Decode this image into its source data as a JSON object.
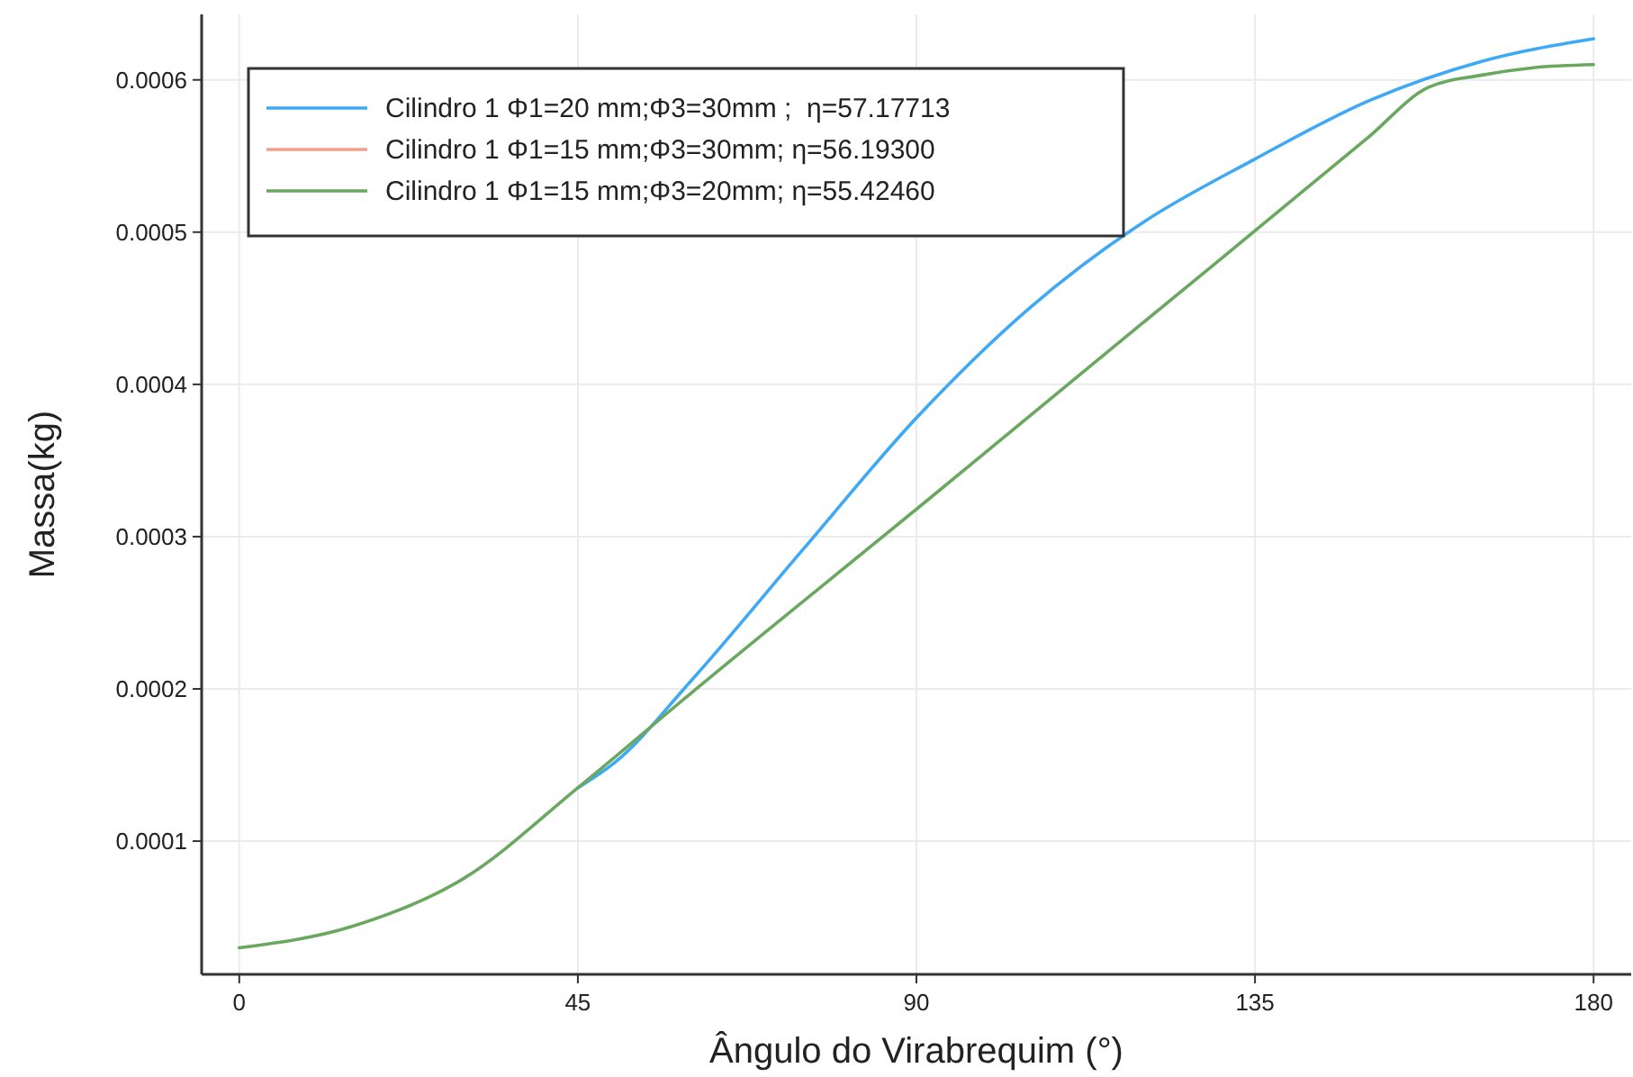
{
  "chart_data": {
    "type": "line",
    "xlabel": "Ângulo do Virabrequim (°)",
    "ylabel": "Massa(kg)",
    "xlim": [
      -5,
      185
    ],
    "ylim": [
      1.25e-05,
      0.000643
    ],
    "xticks": [
      0,
      45,
      90,
      135,
      180
    ],
    "yticks": [
      0.0001,
      0.0002,
      0.0003,
      0.0004,
      0.0005,
      0.0006
    ],
    "grid": true,
    "legend": "top left",
    "marker": "none",
    "line_style": "solid",
    "series": [
      {
        "name": "Cilindro 1 Φ1=20 mm;Φ3=30mm ;  η=57.17713",
        "color": "#3fa9f5",
        "x": [
          45,
          50,
          60,
          75,
          90,
          105,
          120,
          135,
          150,
          165,
          180
        ],
        "values": [
          0.000135,
          0.000152,
          0.000205,
          0.000292,
          0.000378,
          0.00045,
          0.000506,
          0.000548,
          0.000586,
          0.000612,
          0.000627
        ]
      },
      {
        "name": "Cilindro 1 Φ1=15 mm;Φ3=30mm; η=56.19300",
        "color": "#f0a08a",
        "type": "line"
      },
      {
        "name": "Cilindro 1 Φ1=15 mm;Φ3=20mm; η=55.42460",
        "color": "#6aa860",
        "x": [
          0,
          15,
          30,
          45,
          60,
          90,
          120,
          150,
          158,
          165,
          172,
          180
        ],
        "values": [
          3e-05,
          4.4e-05,
          7.6e-05,
          0.000135,
          0.000197,
          0.000318,
          0.00044,
          0.000562,
          0.000595,
          0.000603,
          0.000608,
          0.00061
        ]
      }
    ]
  }
}
